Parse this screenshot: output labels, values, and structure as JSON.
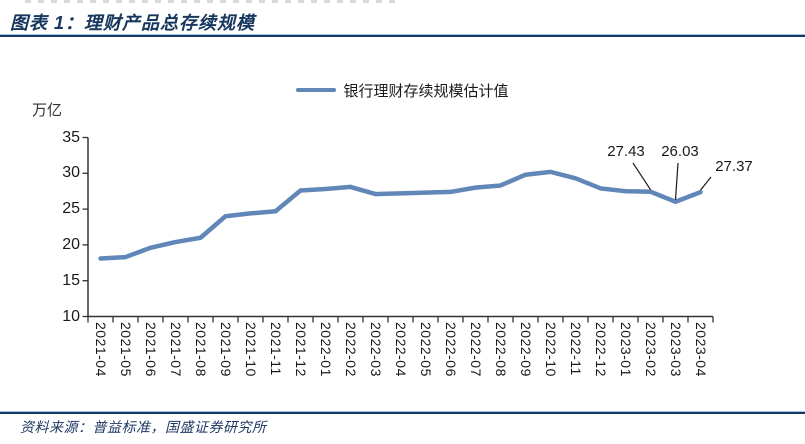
{
  "header": {
    "title": "图表 1：理财产品总存续规模"
  },
  "legend": {
    "label": "银行理财存续规模估计值"
  },
  "footer": {
    "source": "资料来源：普益标准，国盛证券研究所"
  },
  "colors": {
    "accent_navy": "#17375E",
    "series_blue": "#6187B9",
    "axis": "#333333"
  },
  "chart_data": {
    "type": "line",
    "title": "理财产品总存续规模",
    "unit_label": "万亿",
    "categories": [
      "2021-04",
      "2021-05",
      "2021-06",
      "2021-07",
      "2021-08",
      "2021-09",
      "2021-10",
      "2021-11",
      "2021-12",
      "2022-01",
      "2022-02",
      "2022-03",
      "2022-04",
      "2022-05",
      "2022-06",
      "2022-07",
      "2022-08",
      "2022-09",
      "2022-10",
      "2022-11",
      "2022-12",
      "2023-01",
      "2023-02",
      "2023-03",
      "2023-04"
    ],
    "series": [
      {
        "name": "银行理财存续规模估计值",
        "color": "#6187B9",
        "values": [
          18.1,
          18.3,
          19.6,
          20.4,
          21.0,
          24.0,
          24.4,
          24.7,
          27.6,
          27.8,
          28.1,
          27.1,
          27.2,
          27.3,
          27.4,
          28.0,
          28.3,
          29.8,
          30.2,
          29.3,
          27.9,
          27.5,
          27.43,
          26.03,
          27.37
        ]
      }
    ],
    "ylim": [
      10,
      35
    ],
    "yticks": [
      10,
      15,
      20,
      25,
      30,
      35
    ],
    "grid": false,
    "legend_position": "top-center",
    "annotations": [
      {
        "label": "27.43",
        "category": "2023-02",
        "value": 27.43
      },
      {
        "label": "26.03",
        "category": "2023-03",
        "value": 26.03
      },
      {
        "label": "27.37",
        "category": "2023-04",
        "value": 27.37
      }
    ]
  }
}
